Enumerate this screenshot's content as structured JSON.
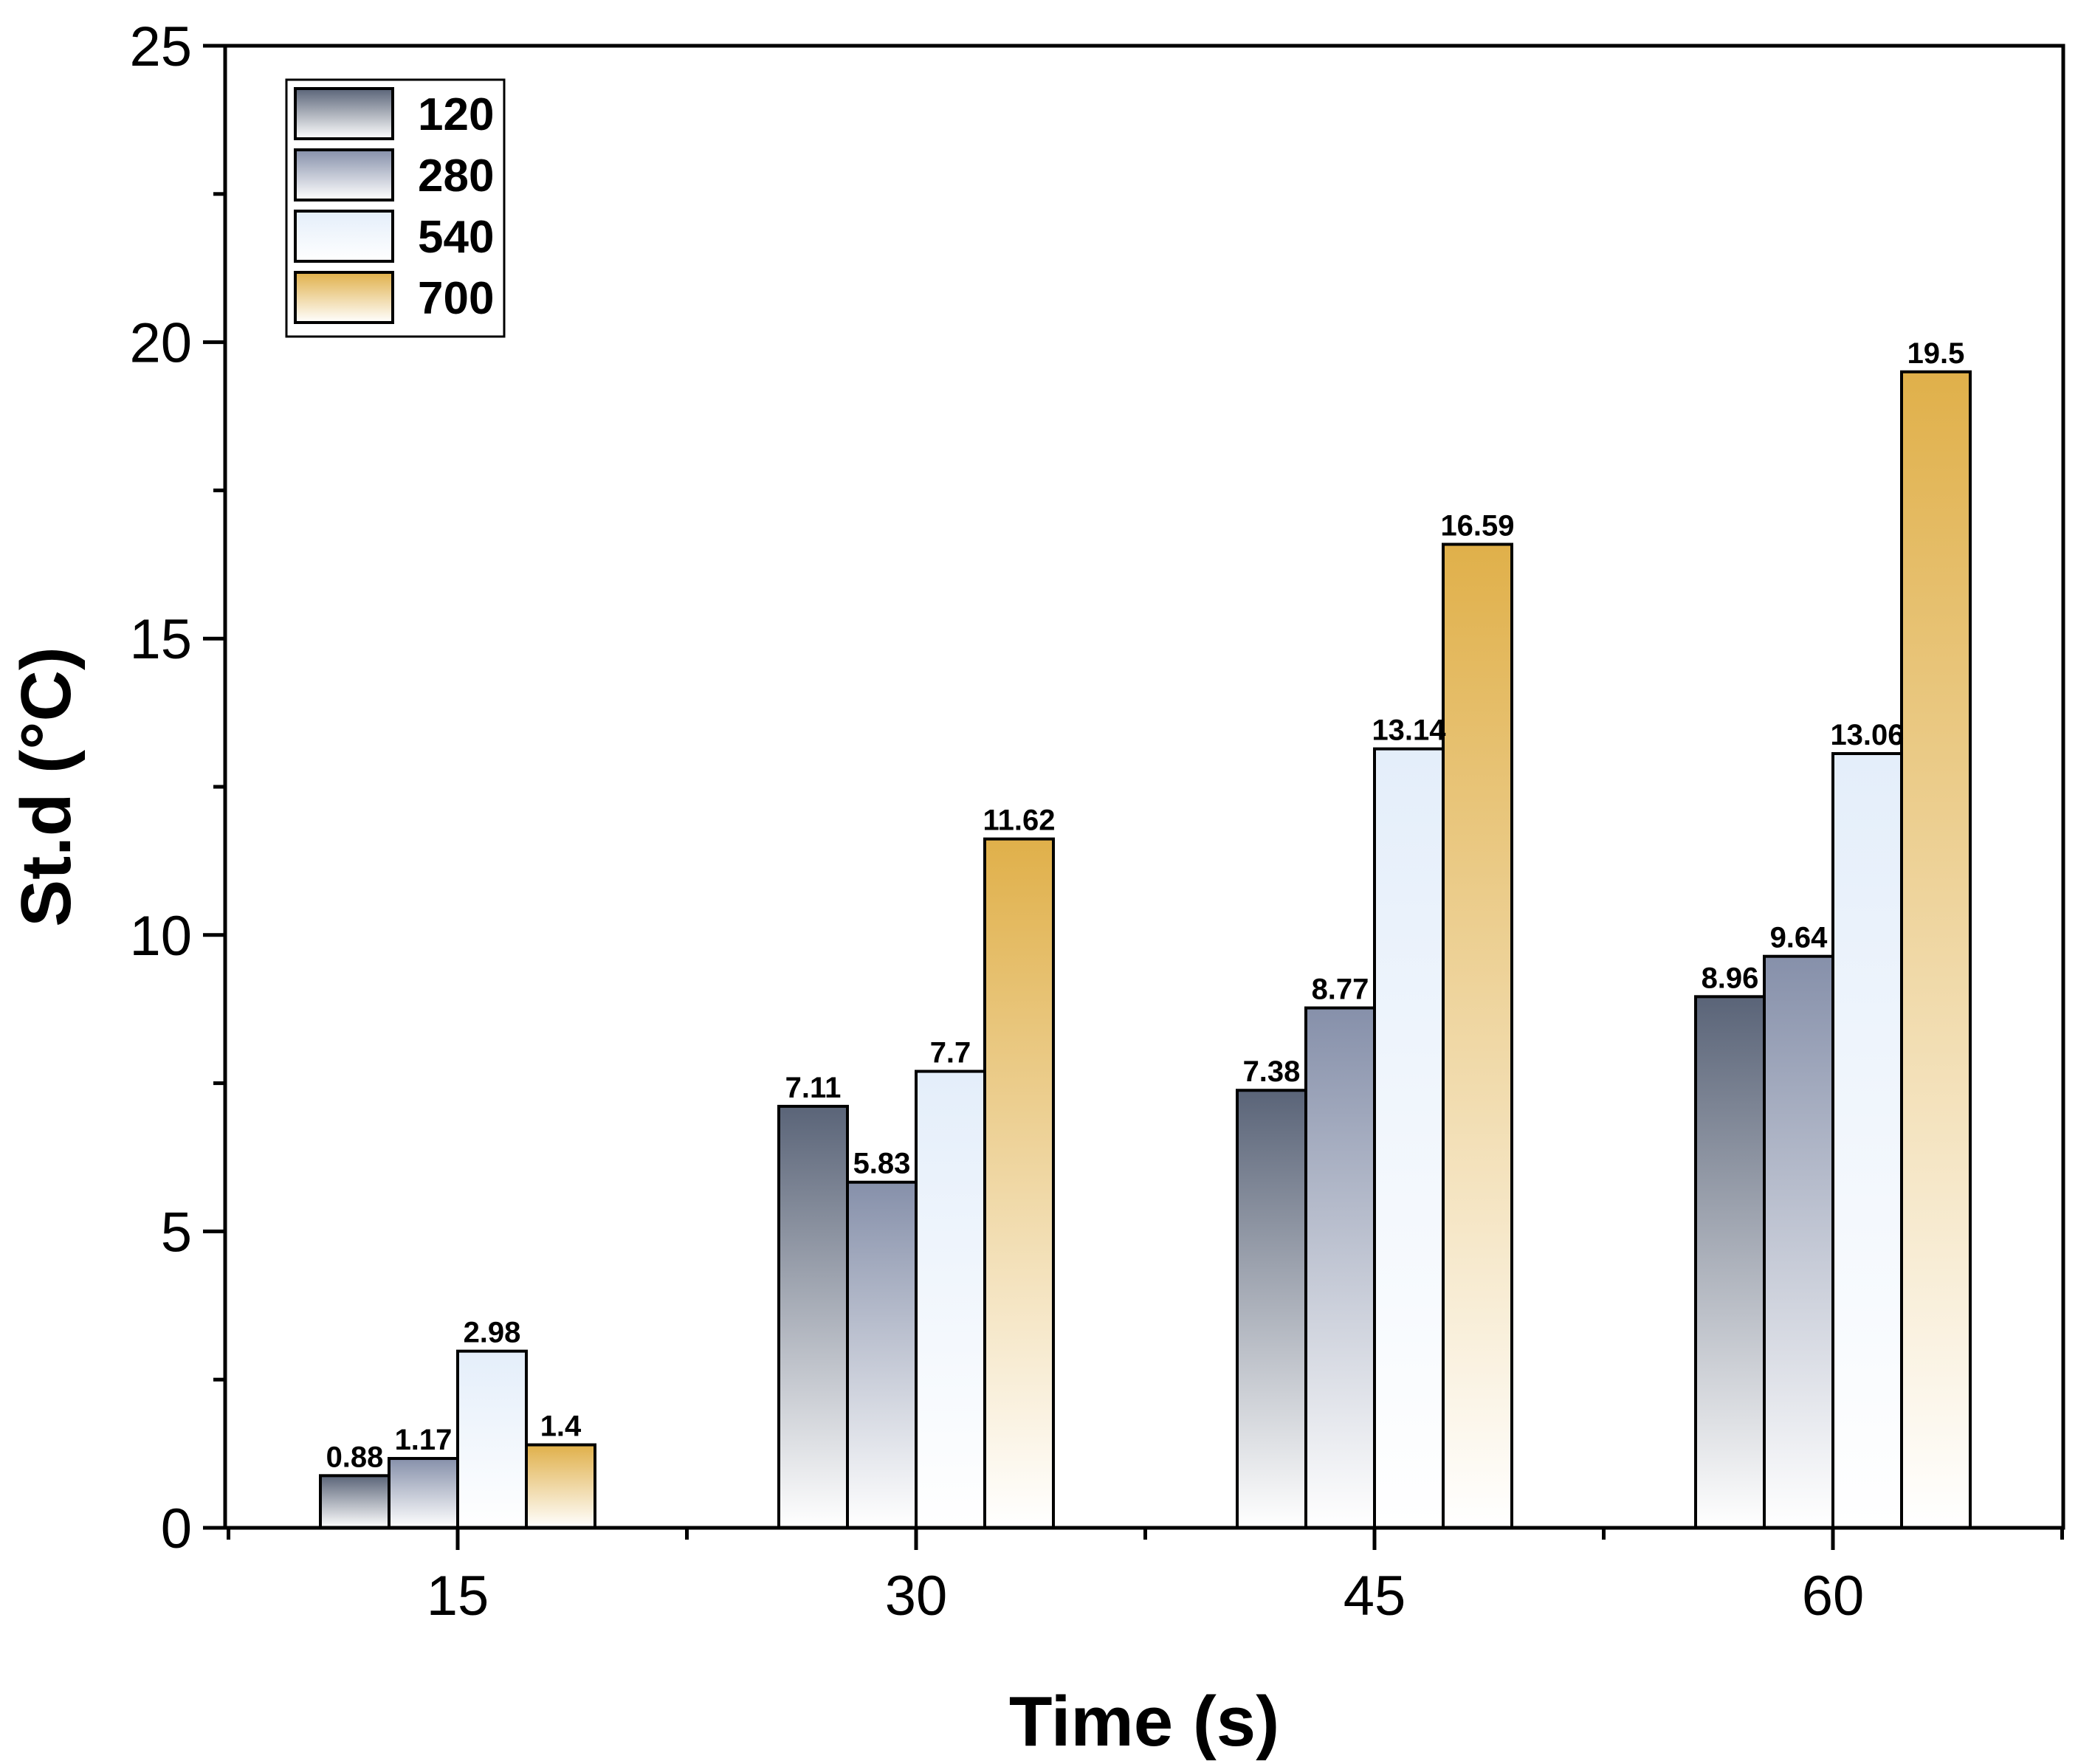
{
  "chart_data": {
    "type": "bar",
    "title": "",
    "xlabel": "Time (s)",
    "ylabel": "St.d (°C)",
    "categories": [
      "15",
      "30",
      "45",
      "60"
    ],
    "ylim": [
      0,
      25
    ],
    "yticks": [
      "0",
      "5",
      "10",
      "15",
      "20",
      "25"
    ],
    "legend_position": "top-left",
    "grid": false,
    "series": [
      {
        "name": "120",
        "values": [
          0.88,
          7.11,
          7.38,
          8.96
        ],
        "labels": [
          "0.88",
          "7.11",
          "7.38",
          "8.96"
        ],
        "color_top": "#5a6478",
        "color_bottom": "#ffffff"
      },
      {
        "name": "280",
        "values": [
          1.17,
          5.83,
          8.77,
          9.64
        ],
        "labels": [
          "1.17",
          "5.83",
          "8.77",
          "9.64"
        ],
        "color_top": "#8690aa",
        "color_bottom": "#ffffff"
      },
      {
        "name": "540",
        "values": [
          2.98,
          7.7,
          13.14,
          13.06
        ],
        "labels": [
          "2.98",
          "7.7",
          "13.14",
          "13.06"
        ],
        "color_top": "#e4eefa",
        "color_bottom": "#ffffff"
      },
      {
        "name": "700",
        "values": [
          1.4,
          11.62,
          16.59,
          19.5
        ],
        "labels": [
          "1.4",
          "11.62",
          "16.59",
          "19.5"
        ],
        "color_top": "#e0b04a",
        "color_bottom": "#ffffff"
      }
    ]
  }
}
